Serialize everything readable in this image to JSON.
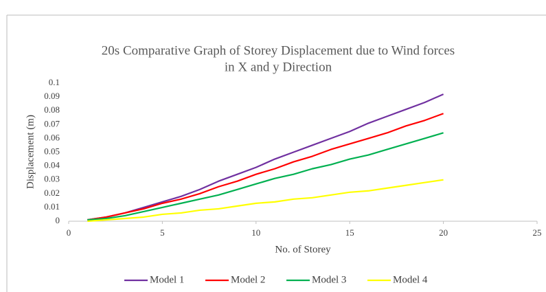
{
  "chart_data": {
    "type": "line",
    "title": [
      "20s Comparative Graph of Storey Displacement due to Wind forces",
      "in X and y Direction"
    ],
    "x_label": "No. of Storey",
    "y_label": "Displacement (m)",
    "x": [
      1,
      2,
      3,
      4,
      5,
      6,
      7,
      8,
      9,
      10,
      11,
      12,
      13,
      14,
      15,
      16,
      17,
      18,
      19,
      20
    ],
    "series": [
      {
        "name": "Model 1",
        "color": "#7030a0",
        "values": [
          0.001,
          0.003,
          0.006,
          0.01,
          0.014,
          0.018,
          0.023,
          0.029,
          0.034,
          0.039,
          0.045,
          0.05,
          0.055,
          0.06,
          0.065,
          0.071,
          0.076,
          0.081,
          0.086,
          0.092
        ]
      },
      {
        "name": "Model 2",
        "color": "#ff0000",
        "values": [
          0.001,
          0.003,
          0.006,
          0.009,
          0.013,
          0.016,
          0.02,
          0.025,
          0.029,
          0.034,
          0.038,
          0.043,
          0.047,
          0.052,
          0.056,
          0.06,
          0.064,
          0.069,
          0.073,
          0.078
        ]
      },
      {
        "name": "Model 3",
        "color": "#00b050",
        "values": [
          0.001,
          0.002,
          0.004,
          0.007,
          0.01,
          0.013,
          0.016,
          0.019,
          0.023,
          0.027,
          0.031,
          0.034,
          0.038,
          0.041,
          0.045,
          0.048,
          0.052,
          0.056,
          0.06,
          0.064
        ]
      },
      {
        "name": "Model 4",
        "color": "#ffff00",
        "values": [
          0.0,
          0.001,
          0.002,
          0.003,
          0.005,
          0.006,
          0.008,
          0.009,
          0.011,
          0.013,
          0.014,
          0.016,
          0.017,
          0.019,
          0.021,
          0.022,
          0.024,
          0.026,
          0.028,
          0.03
        ]
      }
    ],
    "xlim": [
      0,
      25
    ],
    "xticks": [
      0,
      5,
      10,
      15,
      20,
      25
    ],
    "ylim": [
      0,
      0.1
    ],
    "yticks": [
      0,
      0.01,
      0.02,
      0.03,
      0.04,
      0.05,
      0.06,
      0.07,
      0.08,
      0.09,
      0.1
    ],
    "grid": false,
    "legend": "bottom"
  }
}
